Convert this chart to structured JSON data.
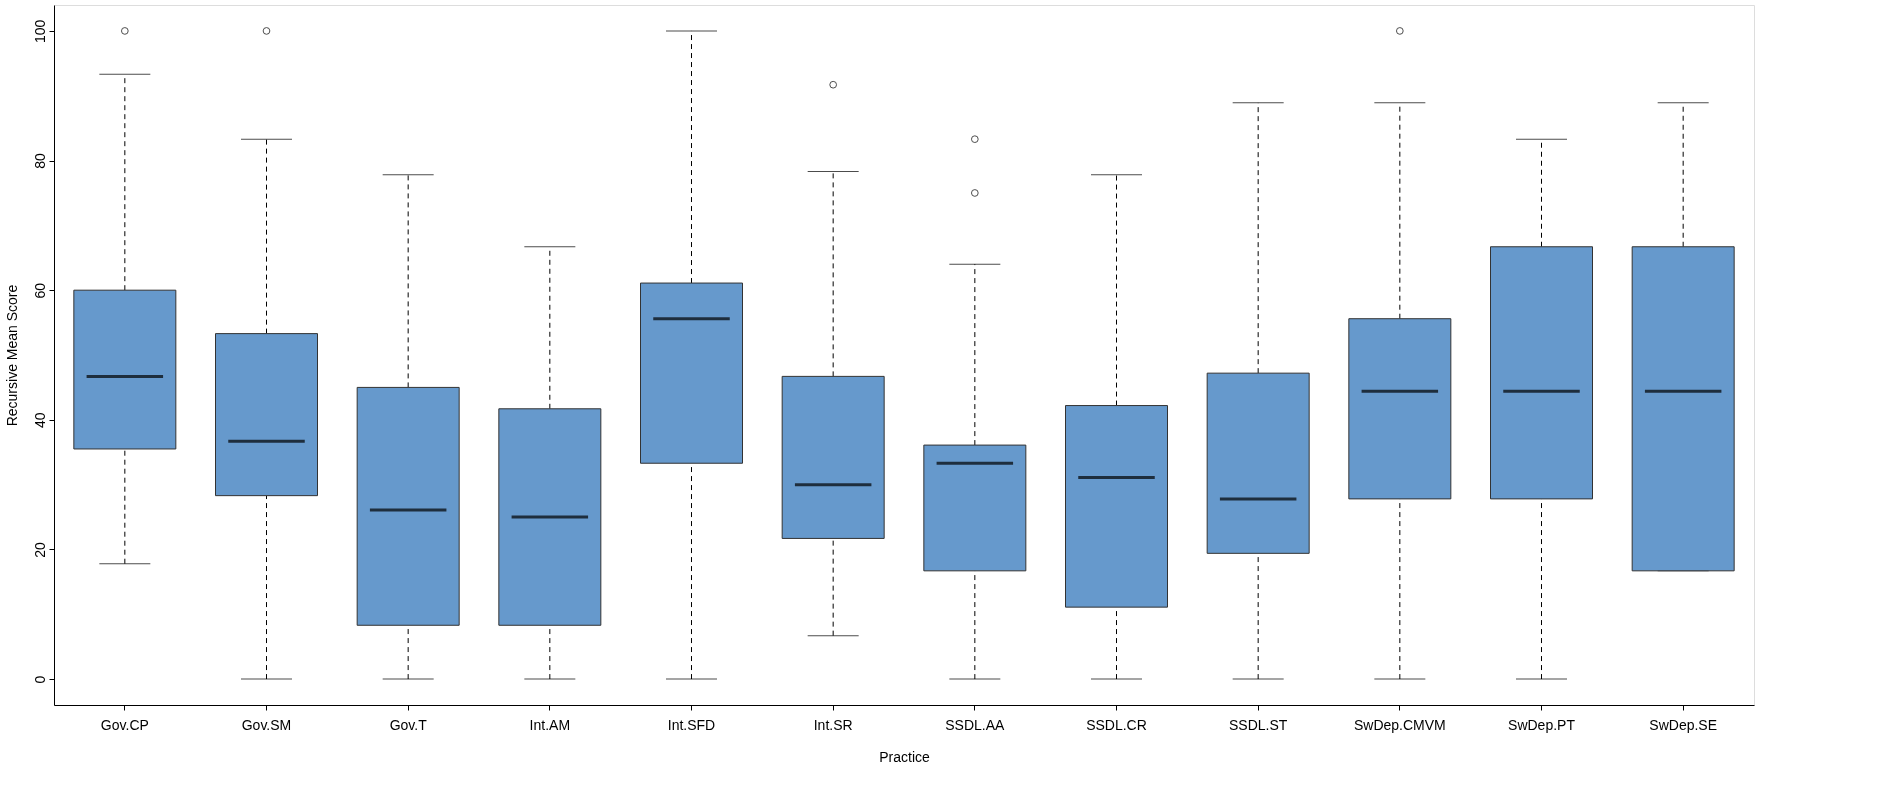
{
  "chart_data": {
    "type": "box",
    "xlabel": "Practice",
    "ylabel": "Recursive Mean Score",
    "categories": [
      "Gov.CP",
      "Gov.SM",
      "Gov.T",
      "Int.AM",
      "Int.SFD",
      "Int.SR",
      "SSDL.AA",
      "SSDL.CR",
      "SSDL.ST",
      "SwDep.CMVM",
      "SwDep.PT",
      "SwDep.SE"
    ],
    "color": "#6699cc",
    "boxes": [
      {
        "low": 17.8,
        "q1": 35.5,
        "median": 46.7,
        "q3": 60,
        "high": 93.3,
        "outliers": [
          100
        ]
      },
      {
        "low": 0,
        "q1": 28.3,
        "median": 36.7,
        "q3": 53.3,
        "high": 83.3,
        "outliers": [
          100
        ]
      },
      {
        "low": 0,
        "q1": 8.3,
        "median": 26.1,
        "q3": 45,
        "high": 77.8
      },
      {
        "low": 0,
        "q1": 8.3,
        "median": 25,
        "q3": 41.7,
        "high": 66.7
      },
      {
        "low": 0,
        "q1": 33.3,
        "median": 55.6,
        "q3": 61.1,
        "high": 100
      },
      {
        "low": 6.7,
        "q1": 21.7,
        "median": 30,
        "q3": 46.7,
        "high": 78.3,
        "outliers": [
          91.7
        ]
      },
      {
        "low": 0,
        "q1": 16.7,
        "median": 33.3,
        "q3": 36.1,
        "high": 64,
        "outliers": [
          83.3,
          75
        ]
      },
      {
        "low": 0,
        "q1": 11.1,
        "median": 31.1,
        "q3": 42.2,
        "high": 77.8
      },
      {
        "low": 0,
        "q1": 19.4,
        "median": 27.8,
        "q3": 47.2,
        "high": 88.9
      },
      {
        "low": 0,
        "q1": 27.8,
        "median": 44.4,
        "q3": 55.6,
        "high": 88.9,
        "outliers": [
          100
        ]
      },
      {
        "low": 0,
        "q1": 27.8,
        "median": 44.4,
        "q3": 66.7,
        "high": 83.3
      },
      {
        "low": 16.7,
        "q1": 16.7,
        "median": 44.4,
        "q3": 66.7,
        "high": 88.9
      }
    ],
    "ylim": [
      -4,
      104
    ],
    "yticks": [
      0,
      20,
      40,
      60,
      80,
      100
    ]
  }
}
